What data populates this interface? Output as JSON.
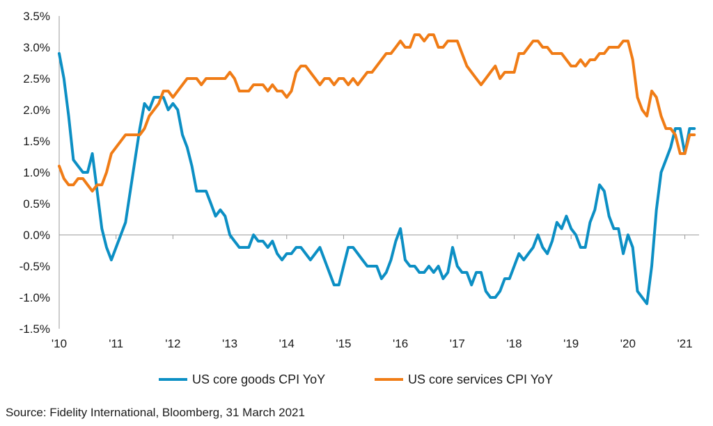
{
  "chart_data": {
    "type": "line",
    "title": "",
    "xlabel": "",
    "ylabel": "",
    "ylim": [
      -1.5,
      3.5
    ],
    "xlim": [
      2010.0,
      2021.25
    ],
    "grid": false,
    "legend_position": "bottom",
    "y_ticks": [
      3.5,
      3.0,
      2.5,
      2.0,
      1.5,
      1.0,
      0.5,
      0.0,
      -0.5,
      -1.0,
      -1.5
    ],
    "y_tick_labels": [
      "3.5%",
      "3.0%",
      "2.5%",
      "2.0%",
      "1.5%",
      "1.0%",
      "0.5%",
      "0.0%",
      "-0.5%",
      "-1.0%",
      "-1.5%"
    ],
    "x_ticks": [
      2010,
      2011,
      2012,
      2013,
      2014,
      2015,
      2016,
      2017,
      2018,
      2019,
      2020,
      2021
    ],
    "x_tick_labels": [
      "'10",
      "'11",
      "'12",
      "'13",
      "'14",
      "'15",
      "'16",
      "'17",
      "'18",
      "'19",
      "'20",
      "'21"
    ],
    "series": [
      {
        "name": "US core goods CPI YoY",
        "color": "#0c8fc4",
        "x": [
          2010.0,
          2010.083,
          2010.167,
          2010.25,
          2010.333,
          2010.417,
          2010.5,
          2010.583,
          2010.667,
          2010.75,
          2010.833,
          2010.917,
          2011.0,
          2011.083,
          2011.167,
          2011.25,
          2011.333,
          2011.417,
          2011.5,
          2011.583,
          2011.667,
          2011.75,
          2011.833,
          2011.917,
          2012.0,
          2012.083,
          2012.167,
          2012.25,
          2012.333,
          2012.417,
          2012.5,
          2012.583,
          2012.667,
          2012.75,
          2012.833,
          2012.917,
          2013.0,
          2013.083,
          2013.167,
          2013.25,
          2013.333,
          2013.417,
          2013.5,
          2013.583,
          2013.667,
          2013.75,
          2013.833,
          2013.917,
          2014.0,
          2014.083,
          2014.167,
          2014.25,
          2014.333,
          2014.417,
          2014.5,
          2014.583,
          2014.667,
          2014.75,
          2014.833,
          2014.917,
          2015.0,
          2015.083,
          2015.167,
          2015.25,
          2015.333,
          2015.417,
          2015.5,
          2015.583,
          2015.667,
          2015.75,
          2015.833,
          2015.917,
          2016.0,
          2016.083,
          2016.167,
          2016.25,
          2016.333,
          2016.417,
          2016.5,
          2016.583,
          2016.667,
          2016.75,
          2016.833,
          2016.917,
          2017.0,
          2017.083,
          2017.167,
          2017.25,
          2017.333,
          2017.417,
          2017.5,
          2017.583,
          2017.667,
          2017.75,
          2017.833,
          2017.917,
          2018.0,
          2018.083,
          2018.167,
          2018.25,
          2018.333,
          2018.417,
          2018.5,
          2018.583,
          2018.667,
          2018.75,
          2018.833,
          2018.917,
          2019.0,
          2019.083,
          2019.167,
          2019.25,
          2019.333,
          2019.417,
          2019.5,
          2019.583,
          2019.667,
          2019.75,
          2019.833,
          2019.917,
          2020.0,
          2020.083,
          2020.167,
          2020.25,
          2020.333,
          2020.417,
          2020.5,
          2020.583,
          2020.667,
          2020.75,
          2020.833,
          2020.917,
          2021.0,
          2021.083,
          2021.167
        ],
        "values": [
          2.9,
          2.5,
          1.9,
          1.2,
          1.1,
          1.0,
          1.0,
          1.3,
          0.7,
          0.1,
          -0.2,
          -0.4,
          -0.2,
          0.0,
          0.2,
          0.7,
          1.2,
          1.7,
          2.1,
          2.0,
          2.2,
          2.2,
          2.2,
          2.0,
          2.1,
          2.0,
          1.6,
          1.4,
          1.1,
          0.7,
          0.7,
          0.7,
          0.5,
          0.3,
          0.4,
          0.3,
          0.0,
          -0.1,
          -0.2,
          -0.2,
          -0.2,
          0.0,
          -0.1,
          -0.1,
          -0.2,
          -0.1,
          -0.3,
          -0.4,
          -0.3,
          -0.3,
          -0.2,
          -0.2,
          -0.3,
          -0.4,
          -0.3,
          -0.2,
          -0.4,
          -0.6,
          -0.8,
          -0.8,
          -0.5,
          -0.2,
          -0.2,
          -0.3,
          -0.4,
          -0.5,
          -0.5,
          -0.5,
          -0.7,
          -0.6,
          -0.4,
          -0.1,
          0.1,
          -0.4,
          -0.5,
          -0.5,
          -0.6,
          -0.6,
          -0.5,
          -0.6,
          -0.5,
          -0.7,
          -0.6,
          -0.2,
          -0.5,
          -0.6,
          -0.6,
          -0.8,
          -0.6,
          -0.6,
          -0.9,
          -1.0,
          -1.0,
          -0.9,
          -0.7,
          -0.7,
          -0.5,
          -0.3,
          -0.4,
          -0.3,
          -0.2,
          0.0,
          -0.2,
          -0.3,
          -0.1,
          0.2,
          0.1,
          0.3,
          0.1,
          0.0,
          -0.2,
          -0.2,
          0.2,
          0.4,
          0.8,
          0.7,
          0.3,
          0.1,
          0.1,
          -0.3,
          0.0,
          -0.2,
          -0.9,
          -1.0,
          -1.1,
          -0.5,
          0.4,
          1.0,
          1.2,
          1.4,
          1.7,
          1.7,
          1.3,
          1.7,
          1.7
        ]
      },
      {
        "name": "US core services CPI YoY",
        "color": "#f07c16",
        "x": [
          2010.0,
          2010.083,
          2010.167,
          2010.25,
          2010.333,
          2010.417,
          2010.5,
          2010.583,
          2010.667,
          2010.75,
          2010.833,
          2010.917,
          2011.0,
          2011.083,
          2011.167,
          2011.25,
          2011.333,
          2011.417,
          2011.5,
          2011.583,
          2011.667,
          2011.75,
          2011.833,
          2011.917,
          2012.0,
          2012.083,
          2012.167,
          2012.25,
          2012.333,
          2012.417,
          2012.5,
          2012.583,
          2012.667,
          2012.75,
          2012.833,
          2012.917,
          2013.0,
          2013.083,
          2013.167,
          2013.25,
          2013.333,
          2013.417,
          2013.5,
          2013.583,
          2013.667,
          2013.75,
          2013.833,
          2013.917,
          2014.0,
          2014.083,
          2014.167,
          2014.25,
          2014.333,
          2014.417,
          2014.5,
          2014.583,
          2014.667,
          2014.75,
          2014.833,
          2014.917,
          2015.0,
          2015.083,
          2015.167,
          2015.25,
          2015.333,
          2015.417,
          2015.5,
          2015.583,
          2015.667,
          2015.75,
          2015.833,
          2015.917,
          2016.0,
          2016.083,
          2016.167,
          2016.25,
          2016.333,
          2016.417,
          2016.5,
          2016.583,
          2016.667,
          2016.75,
          2016.833,
          2016.917,
          2017.0,
          2017.083,
          2017.167,
          2017.25,
          2017.333,
          2017.417,
          2017.5,
          2017.583,
          2017.667,
          2017.75,
          2017.833,
          2017.917,
          2018.0,
          2018.083,
          2018.167,
          2018.25,
          2018.333,
          2018.417,
          2018.5,
          2018.583,
          2018.667,
          2018.75,
          2018.833,
          2018.917,
          2019.0,
          2019.083,
          2019.167,
          2019.25,
          2019.333,
          2019.417,
          2019.5,
          2019.583,
          2019.667,
          2019.75,
          2019.833,
          2019.917,
          2020.0,
          2020.083,
          2020.167,
          2020.25,
          2020.333,
          2020.417,
          2020.5,
          2020.583,
          2020.667,
          2020.75,
          2020.833,
          2020.917,
          2021.0,
          2021.083,
          2021.167
        ],
        "values": [
          1.1,
          0.9,
          0.8,
          0.8,
          0.9,
          0.9,
          0.8,
          0.7,
          0.8,
          0.8,
          1.0,
          1.3,
          1.4,
          1.5,
          1.6,
          1.6,
          1.6,
          1.6,
          1.7,
          1.9,
          2.0,
          2.1,
          2.3,
          2.3,
          2.2,
          2.3,
          2.4,
          2.5,
          2.5,
          2.5,
          2.4,
          2.5,
          2.5,
          2.5,
          2.5,
          2.5,
          2.6,
          2.5,
          2.3,
          2.3,
          2.3,
          2.4,
          2.4,
          2.4,
          2.3,
          2.4,
          2.3,
          2.3,
          2.2,
          2.3,
          2.6,
          2.7,
          2.7,
          2.6,
          2.5,
          2.4,
          2.5,
          2.5,
          2.4,
          2.5,
          2.5,
          2.4,
          2.5,
          2.4,
          2.5,
          2.6,
          2.6,
          2.7,
          2.8,
          2.9,
          2.9,
          3.0,
          3.1,
          3.0,
          3.0,
          3.2,
          3.2,
          3.1,
          3.2,
          3.2,
          3.0,
          3.0,
          3.1,
          3.1,
          3.1,
          2.9,
          2.7,
          2.6,
          2.5,
          2.4,
          2.5,
          2.6,
          2.7,
          2.5,
          2.6,
          2.6,
          2.6,
          2.9,
          2.9,
          3.0,
          3.1,
          3.1,
          3.0,
          3.0,
          2.9,
          2.9,
          2.9,
          2.8,
          2.7,
          2.7,
          2.8,
          2.7,
          2.8,
          2.8,
          2.9,
          2.9,
          3.0,
          3.0,
          3.0,
          3.1,
          3.1,
          2.8,
          2.2,
          2.0,
          1.9,
          2.3,
          2.2,
          1.9,
          1.7,
          1.7,
          1.6,
          1.3,
          1.3,
          1.6,
          1.6
        ]
      }
    ]
  },
  "source": "Source: Fidelity International, Bloomberg, 31 March 2021"
}
